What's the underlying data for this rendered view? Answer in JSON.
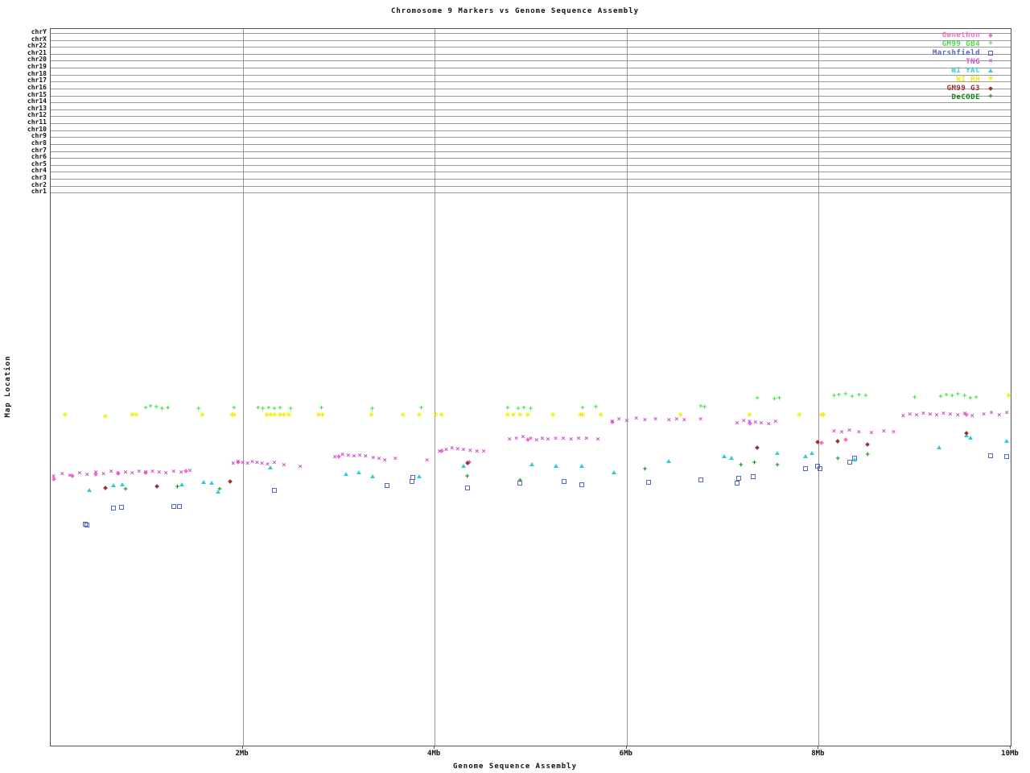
{
  "chart_data": {
    "type": "scatter",
    "title": "Chromosome 9 Markers vs Genome Sequence Assembly",
    "xlabel": "Genome Sequence Assembly",
    "ylabel": "Map Location",
    "x_unit": "Mb",
    "x_range": [
      0,
      10
    ],
    "x_ticks": [
      {
        "label": "2Mb",
        "mb": 2
      },
      {
        "label": "4Mb",
        "mb": 4
      },
      {
        "label": "6Mb",
        "mb": 6
      },
      {
        "label": "8Mb",
        "mb": 8
      },
      {
        "label": "10Mb",
        "mb": 10
      }
    ],
    "x_gridlines_mb": [
      2,
      4,
      6,
      8
    ],
    "grid_color": "#999999",
    "legend_position": "top-right",
    "y_encoding": "fraction_of_plot_height_from_top",
    "chromosome_rows": [
      "chrY",
      "chrX",
      "chr22",
      "chr21",
      "chr20",
      "chr19",
      "chr18",
      "chr17",
      "chr16",
      "chr15",
      "chr14",
      "chr13",
      "chr12",
      "chr11",
      "chr10",
      "chr9",
      "chr8",
      "chr7",
      "chr6",
      "chr5",
      "chr4",
      "chr3",
      "chr2",
      "chr1"
    ],
    "series": [
      {
        "name": "Genethon",
        "color": "#ff66cc",
        "marker": "diamond",
        "points": [
          [
            0.03,
            0.628
          ],
          [
            0.23,
            0.624
          ],
          [
            0.47,
            0.621
          ],
          [
            0.7,
            0.62
          ],
          [
            0.99,
            0.619
          ],
          [
            1.41,
            0.617
          ],
          [
            1.95,
            0.604
          ],
          [
            3.0,
            0.597
          ],
          [
            4.07,
            0.589
          ],
          [
            4.36,
            0.604
          ],
          [
            4.97,
            0.573
          ],
          [
            5.85,
            0.548
          ],
          [
            7.28,
            0.551
          ],
          [
            8.03,
            0.577
          ],
          [
            8.28,
            0.573
          ],
          [
            9.54,
            0.538
          ]
        ]
      },
      {
        "name": "GM99 GB4",
        "color": "#44dd44",
        "marker": "plus",
        "points": [
          [
            0.99,
            0.53
          ],
          [
            1.04,
            0.528
          ],
          [
            1.1,
            0.529
          ],
          [
            1.16,
            0.531
          ],
          [
            1.22,
            0.53
          ],
          [
            1.54,
            0.531
          ],
          [
            1.91,
            0.53
          ],
          [
            2.16,
            0.53
          ],
          [
            2.21,
            0.531
          ],
          [
            2.27,
            0.53
          ],
          [
            2.33,
            0.531
          ],
          [
            2.39,
            0.53
          ],
          [
            2.5,
            0.531
          ],
          [
            2.82,
            0.53
          ],
          [
            3.35,
            0.531
          ],
          [
            3.86,
            0.53
          ],
          [
            4.76,
            0.53
          ],
          [
            4.87,
            0.531
          ],
          [
            4.93,
            0.53
          ],
          [
            5.0,
            0.531
          ],
          [
            5.54,
            0.53
          ],
          [
            5.68,
            0.529
          ],
          [
            6.77,
            0.528
          ],
          [
            6.81,
            0.529
          ],
          [
            7.36,
            0.516
          ],
          [
            7.54,
            0.517
          ],
          [
            7.59,
            0.516
          ],
          [
            8.16,
            0.513
          ],
          [
            8.21,
            0.512
          ],
          [
            8.28,
            0.511
          ],
          [
            8.35,
            0.514
          ],
          [
            8.42,
            0.512
          ],
          [
            8.49,
            0.513
          ],
          [
            9.0,
            0.515
          ],
          [
            9.27,
            0.514
          ],
          [
            9.33,
            0.512
          ],
          [
            9.39,
            0.513
          ],
          [
            9.45,
            0.511
          ],
          [
            9.52,
            0.513
          ],
          [
            9.58,
            0.516
          ],
          [
            9.64,
            0.515
          ]
        ]
      },
      {
        "name": "Marshfield",
        "color": "#5566cc",
        "marker": "square",
        "points": [
          [
            0.36,
            0.691
          ],
          [
            0.38,
            0.692
          ],
          [
            0.65,
            0.668
          ],
          [
            0.74,
            0.667
          ],
          [
            1.28,
            0.666
          ],
          [
            1.34,
            0.666
          ],
          [
            2.33,
            0.644
          ],
          [
            3.5,
            0.637
          ],
          [
            3.76,
            0.632
          ],
          [
            3.77,
            0.626
          ],
          [
            4.34,
            0.64
          ],
          [
            4.89,
            0.634
          ],
          [
            5.35,
            0.631
          ],
          [
            5.53,
            0.636
          ],
          [
            6.23,
            0.633
          ],
          [
            6.77,
            0.629
          ],
          [
            7.15,
            0.634
          ],
          [
            7.17,
            0.627
          ],
          [
            7.32,
            0.625
          ],
          [
            7.86,
            0.613
          ],
          [
            7.99,
            0.61
          ],
          [
            8.01,
            0.613
          ],
          [
            8.32,
            0.605
          ],
          [
            8.37,
            0.599
          ],
          [
            9.79,
            0.595
          ],
          [
            9.96,
            0.597
          ]
        ]
      },
      {
        "name": "TNG",
        "color": "#cc55cc",
        "marker": "x",
        "points": [
          [
            0.03,
            0.625
          ],
          [
            0.12,
            0.622
          ],
          [
            0.2,
            0.624
          ],
          [
            0.3,
            0.621
          ],
          [
            0.38,
            0.623
          ],
          [
            0.47,
            0.62
          ],
          [
            0.55,
            0.622
          ],
          [
            0.63,
            0.619
          ],
          [
            0.7,
            0.621
          ],
          [
            0.78,
            0.62
          ],
          [
            0.85,
            0.621
          ],
          [
            0.92,
            0.619
          ],
          [
            0.99,
            0.62
          ],
          [
            1.06,
            0.619
          ],
          [
            1.13,
            0.62
          ],
          [
            1.2,
            0.621
          ],
          [
            1.28,
            0.618
          ],
          [
            1.36,
            0.62
          ],
          [
            1.45,
            0.617
          ],
          [
            1.9,
            0.607
          ],
          [
            1.95,
            0.605
          ],
          [
            2.0,
            0.606
          ],
          [
            2.05,
            0.607
          ],
          [
            2.1,
            0.605
          ],
          [
            2.15,
            0.606
          ],
          [
            2.2,
            0.607
          ],
          [
            2.26,
            0.608
          ],
          [
            2.33,
            0.606
          ],
          [
            2.43,
            0.61
          ],
          [
            2.6,
            0.612
          ],
          [
            2.96,
            0.598
          ],
          [
            3.04,
            0.595
          ],
          [
            3.1,
            0.596
          ],
          [
            3.16,
            0.597
          ],
          [
            3.22,
            0.596
          ],
          [
            3.28,
            0.597
          ],
          [
            3.36,
            0.599
          ],
          [
            3.42,
            0.601
          ],
          [
            3.48,
            0.603
          ],
          [
            3.59,
            0.601
          ],
          [
            3.92,
            0.603
          ],
          [
            4.05,
            0.59
          ],
          [
            4.12,
            0.588
          ],
          [
            4.18,
            0.586
          ],
          [
            4.24,
            0.587
          ],
          [
            4.3,
            0.588
          ],
          [
            4.37,
            0.589
          ],
          [
            4.44,
            0.59
          ],
          [
            4.51,
            0.591
          ],
          [
            4.78,
            0.574
          ],
          [
            4.85,
            0.572
          ],
          [
            4.92,
            0.57
          ],
          [
            5.0,
            0.573
          ],
          [
            5.06,
            0.575
          ],
          [
            5.12,
            0.573
          ],
          [
            5.18,
            0.574
          ],
          [
            5.26,
            0.572
          ],
          [
            5.34,
            0.573
          ],
          [
            5.42,
            0.574
          ],
          [
            5.5,
            0.572
          ],
          [
            5.58,
            0.573
          ],
          [
            5.7,
            0.574
          ],
          [
            5.85,
            0.549
          ],
          [
            5.92,
            0.546
          ],
          [
            6.0,
            0.548
          ],
          [
            6.1,
            0.544
          ],
          [
            6.19,
            0.547
          ],
          [
            6.3,
            0.545
          ],
          [
            6.44,
            0.547
          ],
          [
            6.52,
            0.546
          ],
          [
            6.6,
            0.547
          ],
          [
            6.77,
            0.545
          ],
          [
            7.15,
            0.551
          ],
          [
            7.22,
            0.548
          ],
          [
            7.28,
            0.549
          ],
          [
            7.34,
            0.55
          ],
          [
            7.4,
            0.551
          ],
          [
            7.48,
            0.552
          ],
          [
            7.55,
            0.549
          ],
          [
            8.16,
            0.562
          ],
          [
            8.24,
            0.564
          ],
          [
            8.32,
            0.561
          ],
          [
            8.42,
            0.563
          ],
          [
            8.55,
            0.565
          ],
          [
            8.68,
            0.562
          ],
          [
            8.78,
            0.564
          ],
          [
            8.88,
            0.541
          ],
          [
            8.95,
            0.539
          ],
          [
            9.02,
            0.54
          ],
          [
            9.09,
            0.538
          ],
          [
            9.16,
            0.539
          ],
          [
            9.23,
            0.54
          ],
          [
            9.3,
            0.538
          ],
          [
            9.37,
            0.539
          ],
          [
            9.45,
            0.54
          ],
          [
            9.52,
            0.538
          ],
          [
            9.6,
            0.541
          ],
          [
            9.72,
            0.539
          ],
          [
            9.8,
            0.537
          ],
          [
            9.88,
            0.54
          ],
          [
            9.96,
            0.536
          ]
        ]
      },
      {
        "name": "WI YAC",
        "color": "#33cccc",
        "marker": "triangle",
        "points": [
          [
            0.4,
            0.643
          ],
          [
            0.65,
            0.637
          ],
          [
            0.75,
            0.635
          ],
          [
            1.37,
            0.635
          ],
          [
            1.59,
            0.632
          ],
          [
            1.68,
            0.633
          ],
          [
            1.74,
            0.646
          ],
          [
            2.29,
            0.612
          ],
          [
            3.08,
            0.621
          ],
          [
            3.21,
            0.619
          ],
          [
            3.35,
            0.624
          ],
          [
            3.84,
            0.624
          ],
          [
            4.3,
            0.609
          ],
          [
            5.01,
            0.607
          ],
          [
            5.26,
            0.609
          ],
          [
            5.53,
            0.61
          ],
          [
            5.87,
            0.618
          ],
          [
            6.44,
            0.603
          ],
          [
            7.02,
            0.596
          ],
          [
            7.09,
            0.598
          ],
          [
            7.57,
            0.592
          ],
          [
            7.86,
            0.596
          ],
          [
            7.93,
            0.592
          ],
          [
            8.37,
            0.601
          ],
          [
            9.25,
            0.584
          ],
          [
            9.54,
            0.567
          ],
          [
            9.58,
            0.57
          ],
          [
            9.96,
            0.575
          ]
        ]
      },
      {
        "name": "WI RH",
        "color": "#eeee00",
        "marker": "star",
        "points": [
          [
            0.15,
            0.54
          ],
          [
            0.57,
            0.543
          ],
          [
            0.85,
            0.54
          ],
          [
            0.89,
            0.541
          ],
          [
            1.58,
            0.54
          ],
          [
            1.89,
            0.541
          ],
          [
            1.91,
            0.54
          ],
          [
            2.25,
            0.54
          ],
          [
            2.29,
            0.541
          ],
          [
            2.33,
            0.54
          ],
          [
            2.39,
            0.541
          ],
          [
            2.43,
            0.54
          ],
          [
            2.48,
            0.541
          ],
          [
            2.79,
            0.54
          ],
          [
            2.83,
            0.541
          ],
          [
            3.34,
            0.54
          ],
          [
            3.67,
            0.54
          ],
          [
            3.84,
            0.541
          ],
          [
            4.01,
            0.54
          ],
          [
            4.07,
            0.54
          ],
          [
            4.76,
            0.541
          ],
          [
            4.82,
            0.54
          ],
          [
            4.89,
            0.541
          ],
          [
            4.97,
            0.54
          ],
          [
            5.23,
            0.54
          ],
          [
            5.52,
            0.54
          ],
          [
            5.54,
            0.541
          ],
          [
            5.73,
            0.54
          ],
          [
            6.56,
            0.54
          ],
          [
            7.28,
            0.54
          ],
          [
            7.8,
            0.541
          ],
          [
            8.03,
            0.54
          ],
          [
            8.05,
            0.541
          ],
          [
            9.98,
            0.513
          ]
        ]
      },
      {
        "name": "GM99 G3",
        "color": "#993333",
        "marker": "diamond",
        "points": [
          [
            0.57,
            0.641
          ],
          [
            1.11,
            0.638
          ],
          [
            1.87,
            0.631
          ],
          [
            4.34,
            0.606
          ],
          [
            7.36,
            0.584
          ],
          [
            7.99,
            0.576
          ],
          [
            8.2,
            0.575
          ],
          [
            8.51,
            0.58
          ],
          [
            9.54,
            0.564
          ]
        ]
      },
      {
        "name": "DeCODE",
        "color": "#118811",
        "marker": "plus",
        "points": [
          [
            0.78,
            0.643
          ],
          [
            1.32,
            0.64
          ],
          [
            1.76,
            0.643
          ],
          [
            4.34,
            0.625
          ],
          [
            4.89,
            0.631
          ],
          [
            6.19,
            0.615
          ],
          [
            7.19,
            0.609
          ],
          [
            7.33,
            0.606
          ],
          [
            7.57,
            0.609
          ],
          [
            8.2,
            0.601
          ],
          [
            8.51,
            0.595
          ]
        ]
      }
    ]
  }
}
